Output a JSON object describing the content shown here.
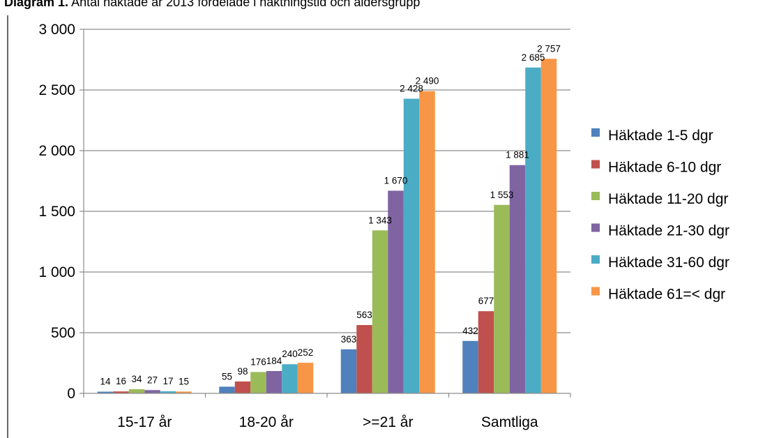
{
  "caption": {
    "bold": "Diagram 1.",
    "text": "Antal häktade år 2013 fördelade i häktningstid och åldersgrupp"
  },
  "chart_data": {
    "type": "bar",
    "categories": [
      "15-17 år",
      "18-20 år",
      ">=21 år",
      "Samtliga"
    ],
    "series": [
      {
        "name": "Häktade 1-5 dgr",
        "color": "#4F81BD",
        "values": [
          14,
          55,
          363,
          432
        ],
        "labels": [
          "14",
          "55",
          "363",
          "432"
        ]
      },
      {
        "name": "Häktade 6-10 dgr",
        "color": "#C0504D",
        "values": [
          16,
          98,
          563,
          677
        ],
        "labels": [
          "16",
          "98",
          "563",
          "677"
        ]
      },
      {
        "name": "Häktade 11-20 dgr",
        "color": "#9BBB59",
        "values": [
          34,
          176,
          1343,
          1553
        ],
        "labels": [
          "34",
          "176",
          "1 343",
          "1 553"
        ]
      },
      {
        "name": "Häktade 21-30 dgr",
        "color": "#8064A2",
        "values": [
          27,
          184,
          1670,
          1881
        ],
        "labels": [
          "27",
          "184",
          "1 670",
          "1 881"
        ]
      },
      {
        "name": "Häktade 31-60 dgr",
        "color": "#4BACC6",
        "values": [
          17,
          240,
          2428,
          2685
        ],
        "labels": [
          "17",
          "240",
          "2 428",
          "2 685"
        ]
      },
      {
        "name": "Häktade 61=< dgr",
        "color": "#F79646",
        "values": [
          15,
          252,
          2490,
          2757
        ],
        "labels": [
          "15",
          "252",
          "2 490",
          "2 757"
        ]
      }
    ],
    "yticks": [
      0,
      500,
      1000,
      1500,
      2000,
      2500,
      3000
    ],
    "ytick_labels": [
      "0",
      "500",
      "1 000",
      "1 500",
      "2 000",
      "2 500",
      "3 000"
    ],
    "ylim": [
      0,
      3000
    ],
    "grid": true,
    "legend": "right",
    "xlabel": "",
    "ylabel": ""
  }
}
